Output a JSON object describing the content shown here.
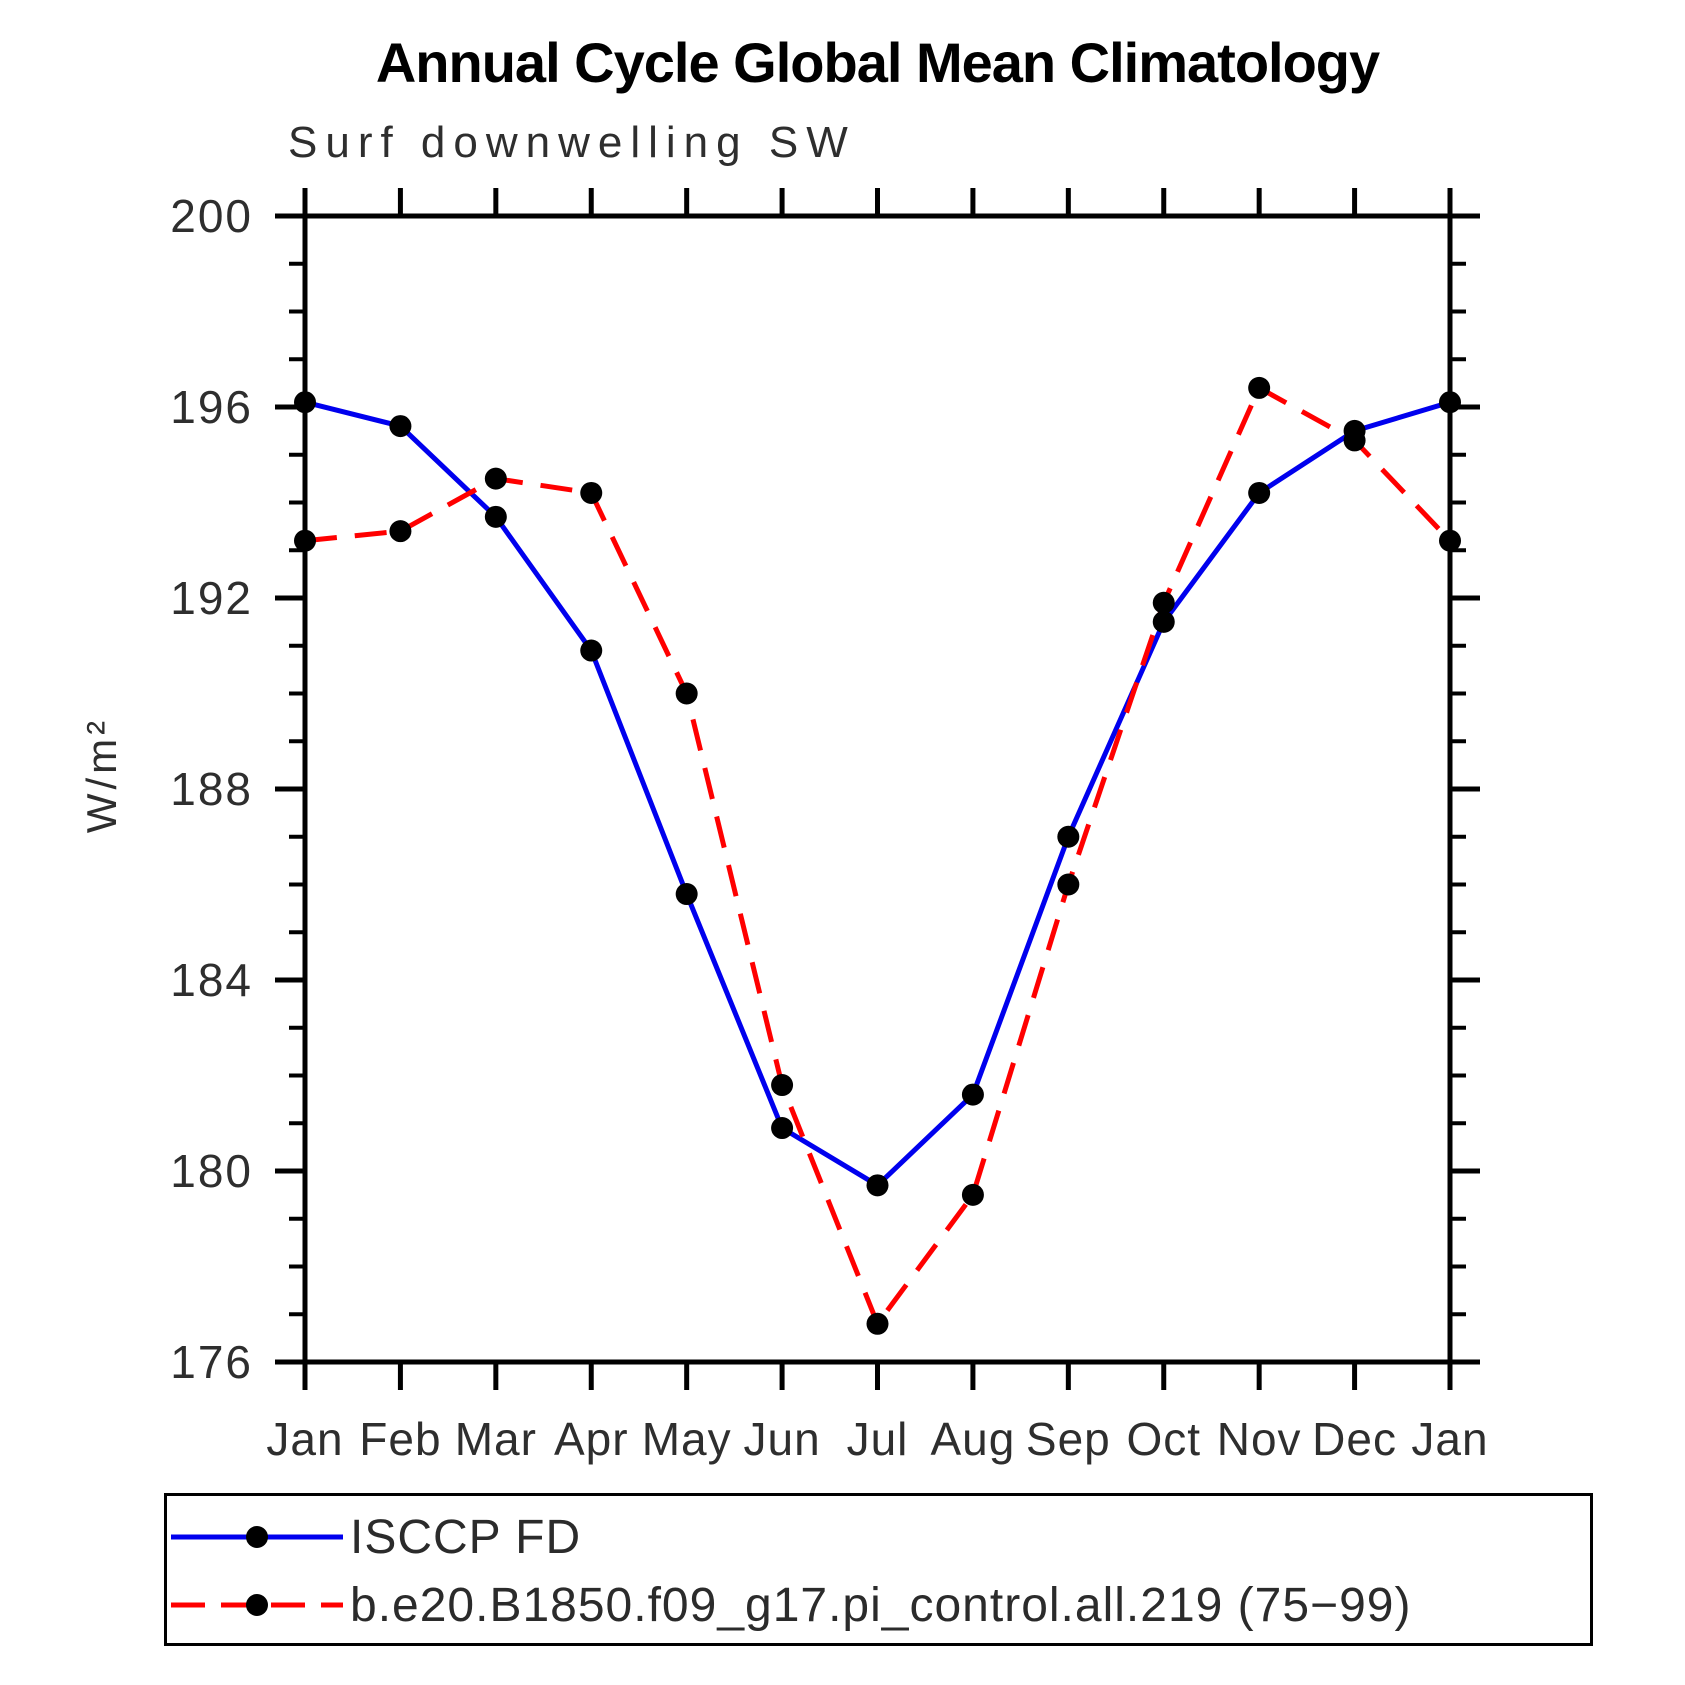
{
  "title": "Annual Cycle Global Mean Climatology",
  "subtitle": "Surf downwelling SW",
  "chart_data": {
    "type": "line",
    "categories": [
      "Jan",
      "Feb",
      "Mar",
      "Apr",
      "May",
      "Jun",
      "Jul",
      "Aug",
      "Sep",
      "Oct",
      "Nov",
      "Dec",
      "Jan"
    ],
    "series": [
      {
        "name": "ISCCP FD",
        "color": "#0000EE",
        "style": "solid",
        "marker": "circle",
        "marker_color": "#000000",
        "values": [
          196.1,
          195.6,
          193.7,
          190.9,
          185.8,
          180.9,
          179.7,
          181.6,
          187.0,
          191.5,
          194.2,
          195.5,
          196.1
        ]
      },
      {
        "name": "b.e20.B1850.f09_g17.pi_control.all.219 (75−99)",
        "color": "#FF0000",
        "style": "dashed",
        "marker": "circle",
        "marker_color": "#000000",
        "values": [
          193.2,
          193.4,
          194.5,
          194.2,
          190.0,
          181.8,
          176.8,
          179.5,
          186.0,
          191.9,
          196.4,
          195.3,
          193.2
        ]
      }
    ],
    "xlabel": "",
    "ylabel": "W/m²",
    "ylim": [
      176,
      200
    ],
    "ytick_major": [
      176,
      180,
      184,
      188,
      192,
      196,
      200
    ],
    "ytick_minor_step": 1,
    "grid": false,
    "legend_position": "bottom",
    "axis_color": "#000000",
    "text_color": "#2e2e2e"
  }
}
